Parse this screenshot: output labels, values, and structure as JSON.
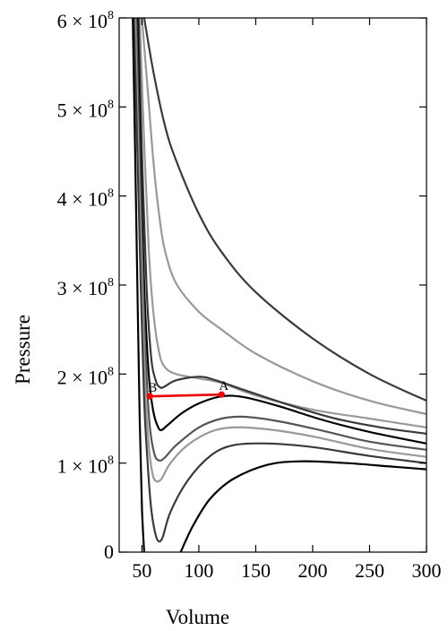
{
  "chart_data": {
    "type": "line",
    "title": "",
    "xlabel": "Volume",
    "ylabel": "Pressure",
    "xlim": [
      30,
      300
    ],
    "ylim": [
      0,
      600000000
    ],
    "x_ticks": [
      50,
      100,
      150,
      200,
      250,
      300
    ],
    "x_tick_labels": [
      "50",
      "100",
      "150",
      "200",
      "250",
      "300"
    ],
    "y_ticks": [
      0,
      100000000,
      200000000,
      300000000,
      400000000,
      500000000,
      600000000
    ],
    "y_tick_labels": [
      {
        "text": "0",
        "mantissa": "",
        "exponent": ""
      },
      {
        "text": "",
        "mantissa": "1",
        "exponent": "8"
      },
      {
        "text": "",
        "mantissa": "2",
        "exponent": "8"
      },
      {
        "text": "",
        "mantissa": "3",
        "exponent": "8"
      },
      {
        "text": "",
        "mantissa": "4",
        "exponent": "8"
      },
      {
        "text": "",
        "mantissa": "5",
        "exponent": "8"
      },
      {
        "text": "",
        "mantissa": "6",
        "exponent": "8"
      }
    ],
    "grid": false,
    "colors": {
      "isotherm_dark": "#3a3a3a",
      "isotherm_light": "#999999",
      "isotherm_black": "#000000",
      "tie_line": "#ee0000"
    },
    "series": [
      {
        "color": "#3a3a3a",
        "points": [
          [
            52,
            600000000
          ],
          [
            60,
            540000000
          ],
          [
            70,
            480000000
          ],
          [
            80,
            440000000
          ],
          [
            100,
            380000000
          ],
          [
            120,
            337000000
          ],
          [
            150,
            292000000
          ],
          [
            200,
            240000000
          ],
          [
            250,
            200000000
          ],
          [
            300,
            170000000
          ]
        ]
      },
      {
        "color": "#999999",
        "points": [
          [
            50,
            600000000
          ],
          [
            55,
            520000000
          ],
          [
            60,
            440000000
          ],
          [
            65,
            380000000
          ],
          [
            70,
            340000000
          ],
          [
            80,
            302000000
          ],
          [
            100,
            270000000
          ],
          [
            120,
            250000000
          ],
          [
            150,
            223000000
          ],
          [
            200,
            192000000
          ],
          [
            250,
            170000000
          ],
          [
            300,
            155000000
          ]
        ]
      },
      {
        "color": "#999999",
        "points": [
          [
            48,
            600000000
          ],
          [
            52,
            460000000
          ],
          [
            56,
            340000000
          ],
          [
            60,
            270000000
          ],
          [
            65,
            225000000
          ],
          [
            70,
            208000000
          ],
          [
            80,
            200000000
          ],
          [
            100,
            195000000
          ],
          [
            120,
            190000000
          ],
          [
            150,
            176000000
          ],
          [
            200,
            160000000
          ],
          [
            250,
            150000000
          ],
          [
            300,
            140000000
          ]
        ]
      },
      {
        "color": "#3a3a3a",
        "points": [
          [
            47,
            600000000
          ],
          [
            50,
            450000000
          ],
          [
            54,
            300000000
          ],
          [
            58,
            220000000
          ],
          [
            62,
            193000000
          ],
          [
            66,
            185000000
          ],
          [
            70,
            186000000
          ],
          [
            80,
            193000000
          ],
          [
            100,
            197000000
          ],
          [
            115,
            193000000
          ],
          [
            140,
            182000000
          ],
          [
            180,
            165000000
          ],
          [
            220,
            150000000
          ],
          [
            260,
            140000000
          ],
          [
            300,
            133000000
          ]
        ]
      },
      {
        "color": "#000000",
        "points": [
          [
            46,
            600000000
          ],
          [
            49,
            430000000
          ],
          [
            52,
            300000000
          ],
          [
            56,
            200000000
          ],
          [
            60,
            158000000
          ],
          [
            64,
            141000000
          ],
          [
            67,
            137000000
          ],
          [
            72,
            142000000
          ],
          [
            85,
            156000000
          ],
          [
            100,
            167000000
          ],
          [
            120,
            175000000
          ],
          [
            140,
            174000000
          ],
          [
            170,
            164000000
          ],
          [
            210,
            148000000
          ],
          [
            250,
            135000000
          ],
          [
            300,
            122000000
          ]
        ]
      },
      {
        "color": "#555555",
        "points": [
          [
            45,
            600000000
          ],
          [
            48,
            440000000
          ],
          [
            51,
            300000000
          ],
          [
            54,
            200000000
          ],
          [
            57,
            140000000
          ],
          [
            61,
            110000000
          ],
          [
            65,
            103000000
          ],
          [
            70,
            106000000
          ],
          [
            80,
            120000000
          ],
          [
            100,
            140000000
          ],
          [
            120,
            150000000
          ],
          [
            140,
            152000000
          ],
          [
            170,
            147000000
          ],
          [
            210,
            136000000
          ],
          [
            250,
            124000000
          ],
          [
            300,
            115000000
          ]
        ]
      },
      {
        "color": "#999999",
        "points": [
          [
            44,
            600000000
          ],
          [
            47,
            440000000
          ],
          [
            50,
            300000000
          ],
          [
            53,
            180000000
          ],
          [
            56,
            120000000
          ],
          [
            59,
            90000000
          ],
          [
            62,
            80000000
          ],
          [
            67,
            82000000
          ],
          [
            75,
            100000000
          ],
          [
            90,
            120000000
          ],
          [
            110,
            135000000
          ],
          [
            130,
            140000000
          ],
          [
            160,
            138000000
          ],
          [
            200,
            130000000
          ],
          [
            250,
            116000000
          ],
          [
            300,
            107000000
          ]
        ]
      },
      {
        "color": "#3a3a3a",
        "points": [
          [
            43,
            600000000
          ],
          [
            46,
            450000000
          ],
          [
            49,
            300000000
          ],
          [
            52,
            170000000
          ],
          [
            55,
            100000000
          ],
          [
            58,
            50000000
          ],
          [
            61,
            25000000
          ],
          [
            64,
            13000000
          ],
          [
            68,
            16000000
          ],
          [
            75,
            45000000
          ],
          [
            90,
            80000000
          ],
          [
            110,
            108000000
          ],
          [
            130,
            120000000
          ],
          [
            160,
            122000000
          ],
          [
            200,
            118000000
          ],
          [
            250,
            108000000
          ],
          [
            300,
            100000000
          ]
        ]
      },
      {
        "color": "#000000",
        "points": [
          [
            42,
            600000000
          ],
          [
            44,
            450000000
          ],
          [
            46,
            300000000
          ],
          [
            48,
            150000000
          ],
          [
            50,
            50000000
          ],
          [
            52,
            0
          ]
        ]
      },
      {
        "color": "#000000",
        "points": [
          [
            84,
            0
          ],
          [
            95,
            30000000
          ],
          [
            110,
            60000000
          ],
          [
            130,
            82000000
          ],
          [
            160,
            98000000
          ],
          [
            190,
            102000000
          ],
          [
            230,
            100000000
          ],
          [
            270,
            96000000
          ],
          [
            300,
            93000000
          ]
        ]
      }
    ],
    "tie_line": {
      "color": "#ee0000",
      "points": [
        [
          57,
          175000000
        ],
        [
          120,
          177000000
        ]
      ]
    },
    "annotations": [
      {
        "text": "B",
        "x": 57,
        "y": 175000000
      },
      {
        "text": "A",
        "x": 120,
        "y": 177000000
      }
    ]
  }
}
